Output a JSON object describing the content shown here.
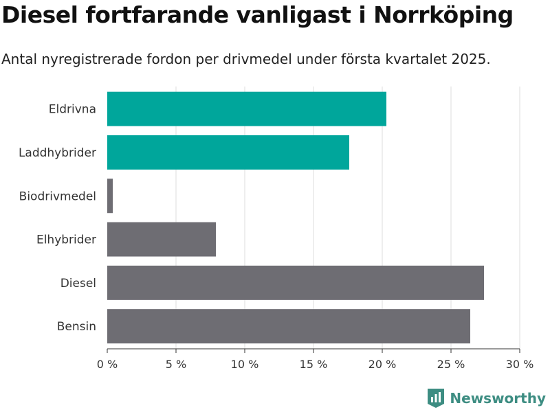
{
  "title": "Diesel fortfarande vanligast i Norrköping",
  "subtitle": "Antal nyregistrerade fordon per drivmedel under första kvartalet 2025.",
  "brand": {
    "name": "Newsworthy",
    "icon": "newsworthy-logo-icon"
  },
  "colors": {
    "highlight": "#00a69b",
    "default": "#6e6d73",
    "grid": "#dddddd",
    "axis": "#333333",
    "brand": "#3d8d82"
  },
  "chart_data": {
    "type": "bar",
    "orientation": "horizontal",
    "categories": [
      "Eldrivna",
      "Laddhybrider",
      "Biodrivmedel",
      "Elhybrider",
      "Diesel",
      "Bensin"
    ],
    "values": [
      20.3,
      17.6,
      0.4,
      7.9,
      27.4,
      26.4
    ],
    "highlighted": [
      "Eldrivna",
      "Laddhybrider"
    ],
    "xlim": [
      0,
      30
    ],
    "xticks": [
      0,
      5,
      10,
      15,
      20,
      25,
      30
    ],
    "tick_labels": [
      "0 %",
      "5 %",
      "10 %",
      "15 %",
      "20 %",
      "25 %",
      "30 %"
    ],
    "grid": true
  }
}
